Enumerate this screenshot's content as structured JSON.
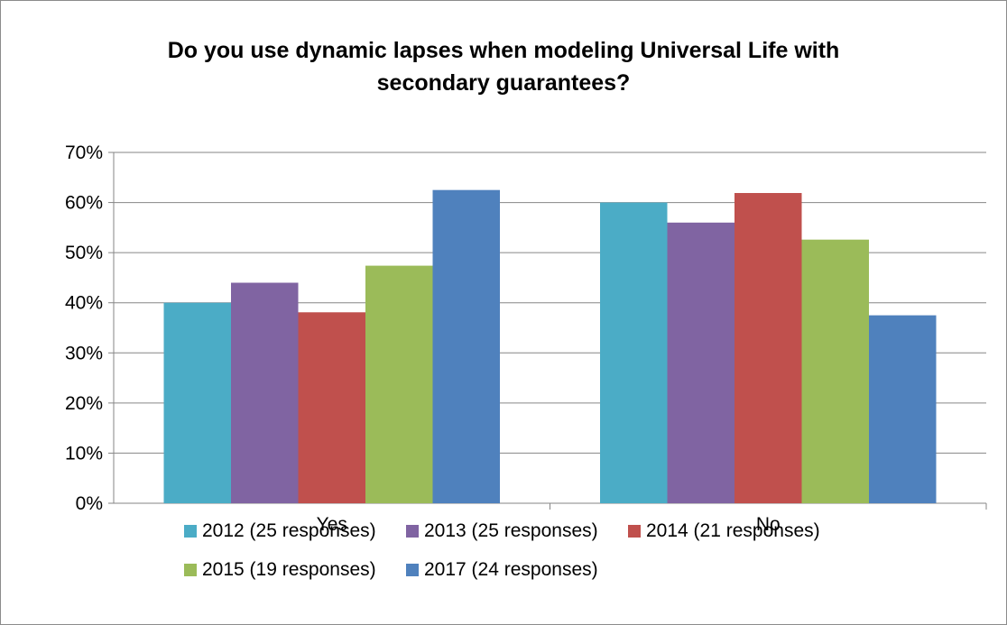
{
  "chart_data": {
    "type": "bar",
    "title_lines": [
      "Do you use dynamic lapses when modeling Universal Life with",
      "secondary guarantees?"
    ],
    "categories": [
      "Yes",
      "No"
    ],
    "series": [
      {
        "name": "2012 (25 responses)",
        "color": "#4BACC6",
        "values": [
          40,
          60
        ]
      },
      {
        "name": "2013 (25 responses)",
        "color": "#8064A2",
        "values": [
          44,
          56
        ]
      },
      {
        "name": "2014 (21 responses)",
        "color": "#C0504D",
        "values": [
          38.1,
          61.9
        ]
      },
      {
        "name": "2015 (19 responses)",
        "color": "#9BBB59",
        "values": [
          47.4,
          52.6
        ]
      },
      {
        "name": "2017 (24 responses)",
        "color": "#4F81BD",
        "values": [
          62.5,
          37.5
        ]
      }
    ],
    "ylim": [
      0,
      70
    ],
    "yticks": [
      "0%",
      "10%",
      "20%",
      "30%",
      "40%",
      "50%",
      "60%",
      "70%"
    ],
    "grid": true,
    "legend_position": "bottom"
  }
}
